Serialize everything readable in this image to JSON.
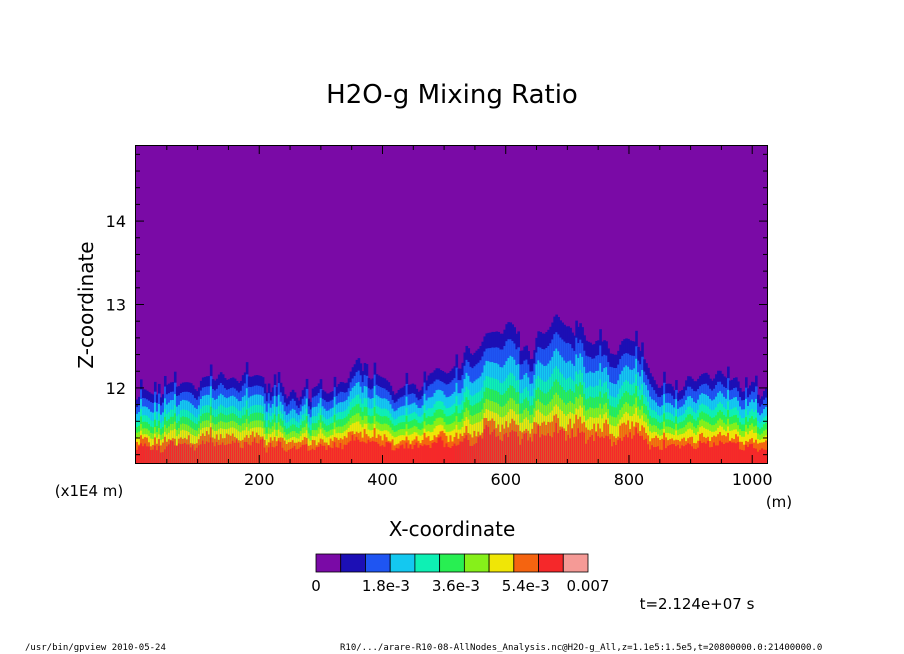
{
  "chart_data": {
    "type": "heatmap",
    "title": "H2O-g Mixing Ratio",
    "xlabel": "X-coordinate",
    "ylabel": "Z-coordinate",
    "x_unit": "(m)",
    "y_unit": "(x1E4 m)",
    "xlim": [
      0,
      1024
    ],
    "ylim": [
      11.1,
      14.9
    ],
    "x_ticks": [
      "200",
      "400",
      "600",
      "800",
      "1000"
    ],
    "x_tick_values": [
      200,
      400,
      600,
      800,
      1000
    ],
    "y_ticks": [
      "12",
      "13",
      "14"
    ],
    "y_tick_values": [
      12,
      13,
      14
    ],
    "colorbar": {
      "colors": [
        "#7a0aa6",
        "#1c0fb5",
        "#1f55f2",
        "#14c8f0",
        "#0ef0b4",
        "#28ef52",
        "#86f01a",
        "#f0e606",
        "#f56410",
        "#f5282a",
        "#f59a96"
      ],
      "labels": [
        "0",
        "1.8e-3",
        "3.6e-3",
        "5.4e-3",
        "0.007"
      ],
      "label_values": [
        0,
        0.0018,
        0.0036,
        0.0054,
        0.007
      ],
      "range": [
        0,
        0.007
      ]
    },
    "layer_top_profile": {
      "x": [
        0,
        40,
        80,
        120,
        160,
        200,
        240,
        280,
        320,
        360,
        400,
        440,
        480,
        520,
        560,
        600,
        640,
        680,
        720,
        760,
        800,
        840,
        880,
        920,
        960,
        1000,
        1024
      ],
      "z": [
        11.92,
        11.95,
        12.05,
        12.1,
        12.12,
        12.05,
        11.95,
        11.9,
        11.98,
        12.25,
        12.05,
        11.98,
        12.1,
        12.3,
        12.55,
        12.75,
        12.4,
        12.85,
        12.7,
        12.45,
        12.6,
        12.1,
        12.0,
        12.1,
        12.15,
        12.0,
        11.9
      ]
    },
    "time_label": "t=2.124e+07 s"
  },
  "footer": {
    "left": "/usr/bin/gpview   2010-05-24",
    "right": "R10/.../arare-R10-08-AllNodes_Analysis.nc@H2O-g_All,z=1.1e5:1.5e5,t=20800000.0:21400000.0"
  }
}
